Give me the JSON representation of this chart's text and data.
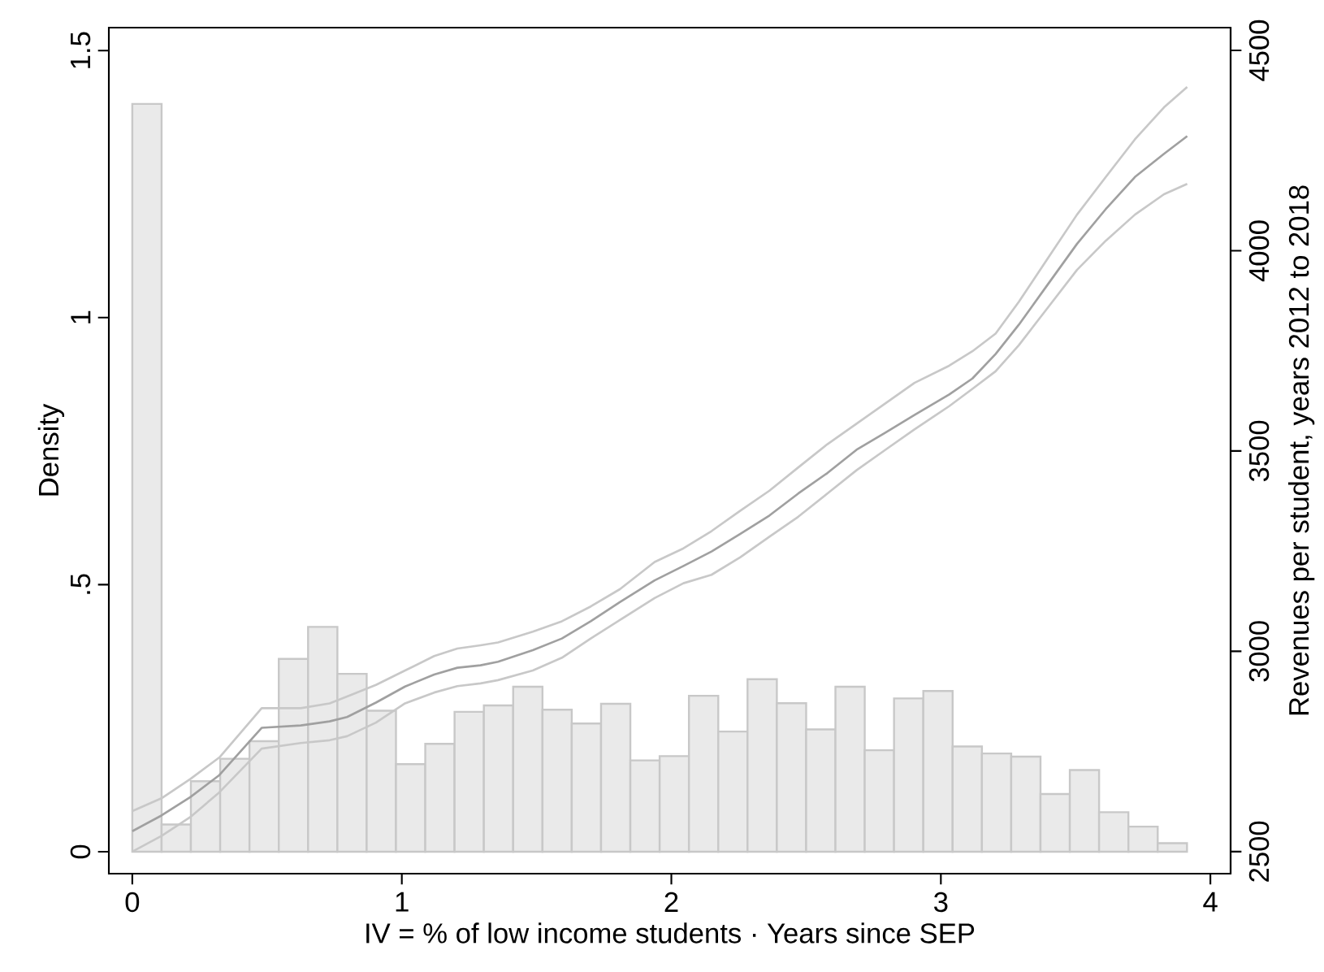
{
  "chart_data": {
    "type": "histogram",
    "xlabel": "IV = % of low income students · Years since SEP",
    "ylabel": "Density",
    "y2label": "Revenues per student, years 2012 to 2018",
    "xlim": [
      -0.087,
      4.075
    ],
    "xticks": [
      0,
      1,
      2,
      3,
      4
    ],
    "ylim": [
      -0.041,
      1.543
    ],
    "yticks": [
      0,
      {
        "value": 0.5,
        "label": ".5"
      },
      1,
      1.5
    ],
    "y2lim": [
      2445,
      4557
    ],
    "y2ticks": [
      2500,
      3000,
      3500,
      4000,
      4500
    ],
    "grid": false,
    "marker": "none",
    "line_style": "solid",
    "series": [
      {
        "type": "histogram",
        "color": "#eaeaea",
        "bins": [
          0,
          0.1087,
          0.2174,
          0.3261,
          0.4348,
          0.5435,
          0.6522,
          0.7609,
          0.8696,
          0.9783,
          1.087,
          1.1957,
          1.3044,
          1.4131,
          1.5218,
          1.6305,
          1.7392,
          1.8479,
          1.9566,
          2.0653,
          2.174,
          2.2827,
          2.3914,
          2.5001,
          2.6088,
          2.7175,
          2.8262,
          2.9349,
          3.0436,
          3.1523,
          3.261,
          3.3697,
          3.4784,
          3.5871,
          3.6958,
          3.8045,
          3.9132
        ],
        "values": [
          1.4,
          0.051,
          0.132,
          0.174,
          0.207,
          0.361,
          0.421,
          0.333,
          0.264,
          0.164,
          0.202,
          0.262,
          0.274,
          0.309,
          0.266,
          0.24,
          0.277,
          0.171,
          0.179,
          0.292,
          0.225,
          0.323,
          0.278,
          0.229,
          0.309,
          0.19,
          0.287,
          0.301,
          0.197,
          0.184,
          0.178,
          0.108,
          0.153,
          0.074,
          0.047,
          0.016
        ]
      },
      {
        "type": "line",
        "axis": "y2",
        "color": "#c8c8c8",
        "x": [
          0,
          0.108,
          0.215,
          0.323,
          0.48,
          0.625,
          0.732,
          0.797,
          0.904,
          1.012,
          1.12,
          1.206,
          1.292,
          1.357,
          1.486,
          1.594,
          1.701,
          1.809,
          1.938,
          2.045,
          2.149,
          2.256,
          2.364,
          2.471,
          2.579,
          2.687,
          2.794,
          2.902,
          3.031,
          3.117,
          3.203,
          3.289,
          3.397,
          3.505,
          3.612,
          3.72,
          3.828,
          3.914
        ],
        "values": [
          2601,
          2633,
          2681,
          2735,
          2858,
          2858,
          2870,
          2887,
          2916,
          2952,
          2988,
          3007,
          3015,
          3022,
          3049,
          3075,
          3112,
          3155,
          3223,
          3257,
          3300,
          3351,
          3401,
          3459,
          3517,
          3568,
          3619,
          3670,
          3713,
          3749,
          3793,
          3872,
          3981,
          4090,
          4184,
          4278,
          4358,
          4409
        ]
      },
      {
        "type": "line",
        "axis": "y2",
        "color": "#c8c8c8",
        "x": [
          0,
          0.108,
          0.215,
          0.323,
          0.48,
          0.625,
          0.732,
          0.797,
          0.904,
          1.012,
          1.12,
          1.206,
          1.292,
          1.357,
          1.486,
          1.594,
          1.701,
          1.809,
          1.938,
          2.045,
          2.149,
          2.256,
          2.364,
          2.471,
          2.579,
          2.687,
          2.794,
          2.902,
          3.031,
          3.117,
          3.203,
          3.289,
          3.397,
          3.505,
          3.612,
          3.72,
          3.828,
          3.914
        ],
        "values": [
          2500,
          2539,
          2586,
          2648,
          2757,
          2771,
          2778,
          2788,
          2822,
          2870,
          2897,
          2913,
          2920,
          2928,
          2952,
          2984,
          3032,
          3078,
          3133,
          3170,
          3191,
          3235,
          3286,
          3336,
          3394,
          3452,
          3503,
          3554,
          3612,
          3655,
          3699,
          3764,
          3858,
          3952,
          4025,
          4090,
          4141,
          4167
        ]
      },
      {
        "type": "line",
        "axis": "y2",
        "color": "#a0a0a0",
        "x": [
          0,
          0.108,
          0.215,
          0.323,
          0.48,
          0.625,
          0.732,
          0.797,
          0.904,
          1.012,
          1.12,
          1.206,
          1.292,
          1.357,
          1.486,
          1.594,
          1.701,
          1.809,
          1.938,
          2.045,
          2.149,
          2.256,
          2.364,
          2.471,
          2.579,
          2.687,
          2.794,
          2.902,
          3.031,
          3.117,
          3.203,
          3.289,
          3.397,
          3.505,
          3.612,
          3.72,
          3.828,
          3.914
        ],
        "values": [
          2551,
          2590,
          2636,
          2691,
          2809,
          2815,
          2825,
          2836,
          2872,
          2912,
          2942,
          2959,
          2965,
          2974,
          3003,
          3032,
          3075,
          3123,
          3177,
          3213,
          3249,
          3293,
          3339,
          3394,
          3445,
          3503,
          3546,
          3590,
          3641,
          3681,
          3742,
          3815,
          3916,
          4017,
          4104,
          4184,
          4242,
          4286
        ]
      }
    ]
  }
}
